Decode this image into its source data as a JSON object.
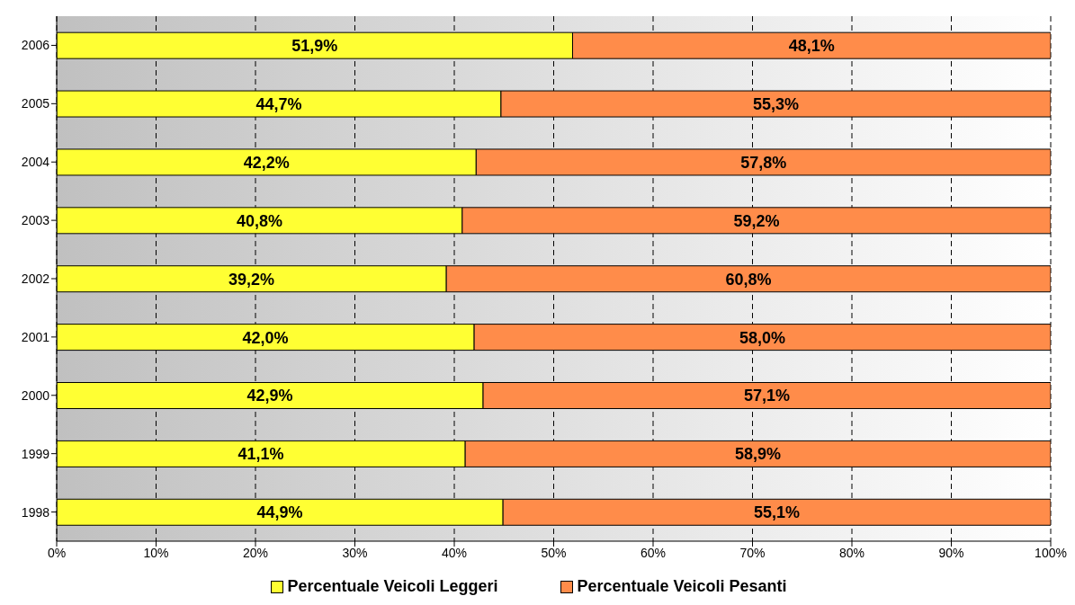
{
  "chart_data": {
    "type": "bar",
    "orientation": "horizontal",
    "stacked": true,
    "categories": [
      "2006",
      "2005",
      "2004",
      "2003",
      "2002",
      "2001",
      "2000",
      "1999",
      "1998"
    ],
    "series": [
      {
        "name": "Percentuale Veicoli Leggeri",
        "color": "#ffff33",
        "values": [
          51.9,
          44.7,
          42.2,
          40.8,
          39.2,
          42.0,
          42.9,
          41.1,
          44.9
        ],
        "value_labels": [
          "51,9%",
          "44,7%",
          "42,2%",
          "40,8%",
          "39,2%",
          "42,0%",
          "42,9%",
          "41,1%",
          "44,9%"
        ]
      },
      {
        "name": "Percentuale Veicoli Pesanti",
        "color": "#ff8c4a",
        "values": [
          48.1,
          55.3,
          57.8,
          59.2,
          60.8,
          58.0,
          57.1,
          58.9,
          55.1
        ],
        "value_labels": [
          "48,1%",
          "55,3%",
          "57,8%",
          "59,2%",
          "60,8%",
          "58,0%",
          "57,1%",
          "58,9%",
          "55,1%"
        ]
      }
    ],
    "xlim": [
      0,
      100
    ],
    "xticks": [
      {
        "value": 0,
        "label": "0%"
      },
      {
        "value": 10,
        "label": "10%"
      },
      {
        "value": 20,
        "label": "20%"
      },
      {
        "value": 30,
        "label": "30%"
      },
      {
        "value": 40,
        "label": "40%"
      },
      {
        "value": 50,
        "label": "50%"
      },
      {
        "value": 60,
        "label": "60%"
      },
      {
        "value": 70,
        "label": "70%"
      },
      {
        "value": 80,
        "label": "80%"
      },
      {
        "value": 90,
        "label": "90%"
      },
      {
        "value": 100,
        "label": "100%"
      }
    ],
    "grid": "x",
    "line_style": "dashed",
    "legend": "bottom"
  }
}
